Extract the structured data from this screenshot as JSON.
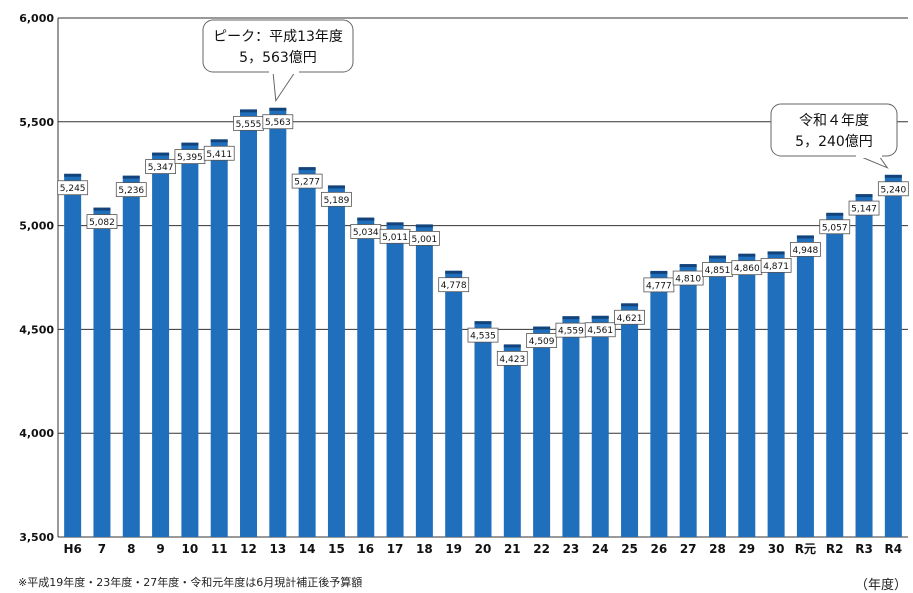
{
  "chart_data": {
    "type": "bar",
    "categories": [
      "H6",
      "7",
      "8",
      "9",
      "10",
      "11",
      "12",
      "13",
      "14",
      "15",
      "16",
      "17",
      "18",
      "19",
      "20",
      "21",
      "22",
      "23",
      "24",
      "25",
      "26",
      "27",
      "28",
      "29",
      "30",
      "R元",
      "R2",
      "R3",
      "R4"
    ],
    "values": [
      5245,
      5082,
      5236,
      5347,
      5395,
      5411,
      5555,
      5563,
      5277,
      5189,
      5034,
      5011,
      5001,
      4778,
      4535,
      4423,
      4509,
      4559,
      4561,
      4621,
      4777,
      4810,
      4851,
      4860,
      4871,
      4948,
      5057,
      5147,
      5240
    ],
    "data_labels": [
      "5,245",
      "5,082",
      "5,236",
      "5,347",
      "5,395",
      "5,411",
      "5,555",
      "5,563",
      "5,277",
      "5,189",
      "5,034",
      "5,011",
      "5,001",
      "4,778",
      "4,535",
      "4,423",
      "4,509",
      "4,559",
      "4,561",
      "4,621",
      "4,777",
      "4,810",
      "4,851",
      "4,860",
      "4,871",
      "4,948",
      "5,057",
      "5,147",
      "5,240"
    ],
    "ylim": [
      3500,
      6000
    ],
    "yticks": [
      3500,
      4000,
      4500,
      5000,
      5500,
      6000
    ],
    "ytick_labels": [
      "3,500",
      "4,000",
      "4,500",
      "5,000",
      "5,500",
      "6,000"
    ],
    "grid": true,
    "bar_color": "#1f6fbd",
    "bar_cap_color": "#12437a",
    "xunit": "（年度）",
    "note": "※平成19年度・23年度・27年度・令和元年度は6月現計補正後予算額",
    "callouts": [
      {
        "line1": "ピーク：平成13年度",
        "line2": "5，563億円",
        "category": "13"
      },
      {
        "line1": "令和４年度",
        "line2": "5，240億円",
        "category": "R4"
      }
    ]
  }
}
